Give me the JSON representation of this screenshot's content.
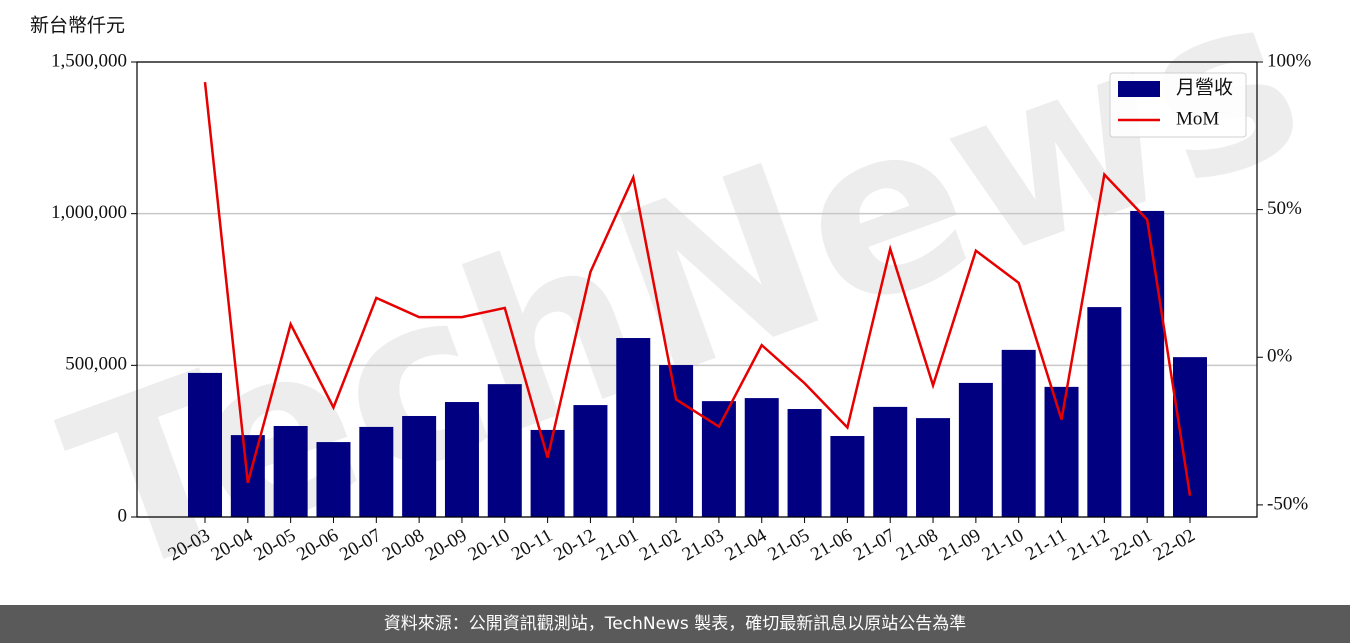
{
  "chart_data": {
    "type": "bar-line",
    "ylabel": "新台幣仟元",
    "watermark": "TechNews",
    "categories": [
      "20-03",
      "20-04",
      "20-05",
      "20-06",
      "20-07",
      "20-08",
      "20-09",
      "20-10",
      "20-11",
      "20-12",
      "21-01",
      "21-02",
      "21-03",
      "21-04",
      "21-05",
      "21-06",
      "21-07",
      "21-08",
      "21-09",
      "21-10",
      "21-11",
      "21-12",
      "22-01",
      "22-02"
    ],
    "series": [
      {
        "name": "月營收",
        "type": "bar",
        "color": "#000080",
        "values": [
          475000,
          270000,
          300000,
          247000,
          297000,
          333000,
          379000,
          438000,
          287000,
          369000,
          590000,
          501000,
          382000,
          392000,
          356000,
          267000,
          363000,
          326000,
          442000,
          551000,
          429000,
          692000,
          1009000,
          527000
        ]
      },
      {
        "name": "MoM",
        "type": "line",
        "axis": "y2",
        "color": "#e60000",
        "values": [
          93.2,
          -42.5,
          11.2,
          -17.0,
          20.1,
          13.6,
          13.6,
          16.7,
          -34.0,
          28.9,
          60.9,
          -14.3,
          -23.5,
          4.1,
          -8.8,
          -23.8,
          36.7,
          -9.5,
          36.1,
          25.2,
          -21.1,
          61.9,
          46.6,
          -46.9
        ]
      }
    ],
    "ylim": [
      0,
      1500000
    ],
    "yticks": [
      0,
      {
        "value": 500000,
        "label": "500,000"
      },
      {
        "value": 1000000,
        "label": "1,000,000"
      },
      {
        "value": 1500000,
        "label": "1,500,000"
      }
    ],
    "y2lim": [
      -54.1,
      100
    ],
    "y2ticks": [
      {
        "value": -50,
        "label": "-50%"
      },
      {
        "value": 0,
        "label": "0%"
      },
      {
        "value": 50,
        "label": "50%"
      },
      {
        "value": 100,
        "label": "100%"
      }
    ],
    "grid": true,
    "legend": "upper right"
  },
  "footer": "資料來源：公開資訊觀測站，TechNews 製表，確切最新訊息以原站公告為準"
}
